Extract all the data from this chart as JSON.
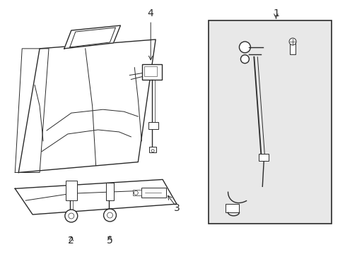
{
  "bg_color": "#ffffff",
  "line_color": "#2a2a2a",
  "box_bg": "#e8e8e8",
  "fig_width": 4.89,
  "fig_height": 3.6,
  "dpi": 100
}
